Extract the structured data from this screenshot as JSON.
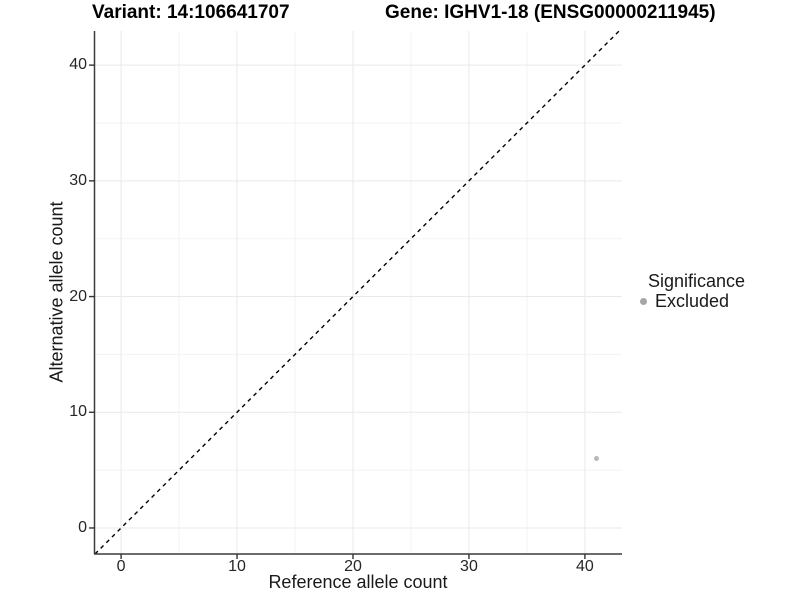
{
  "titles": {
    "variant": "Variant: 14:106641707",
    "gene": "Gene: IGHV1-18 (ENSG00000211945)"
  },
  "axes": {
    "x": {
      "label": "Reference allele count",
      "tick_labels": [
        "0",
        "10",
        "20",
        "30",
        "40"
      ]
    },
    "y": {
      "label": "Alternative allele count",
      "tick_labels": [
        "0",
        "10",
        "20",
        "30",
        "40"
      ]
    }
  },
  "legend": {
    "title": "Significance",
    "items": [
      {
        "label": "Excluded",
        "key_color": "#a6a6a6"
      }
    ]
  },
  "colors": {
    "background": "#ffffff",
    "grid_major": "#e9e9e9",
    "grid_minor": "#f3f3f3",
    "axis_line": "#3c3c3c",
    "tick_mark": "#333333",
    "identity_line": "#000000",
    "point": "#b9b9b9",
    "legend_key": "#a6a6a6"
  },
  "chart_data": {
    "type": "scatter",
    "title": "Variant: 14:106641707  |  Gene: IGHV1-18 (ENSG00000211945)",
    "xlabel": "Reference allele count",
    "ylabel": "Alternative allele count",
    "xlim": [
      -2.25,
      43.2
    ],
    "ylim": [
      -2.25,
      42.95
    ],
    "x_ticks": [
      0,
      10,
      20,
      30,
      40
    ],
    "y_ticks": [
      0,
      10,
      20,
      30,
      40
    ],
    "grid": {
      "major": true,
      "minor": true,
      "minor_spacing": 5
    },
    "identity_line": {
      "slope": 1,
      "intercept": 0,
      "style": "dashed"
    },
    "legend_position": "right",
    "series": [
      {
        "name": "Excluded",
        "color": "#b9b9b9",
        "point_radius": 2.5,
        "points": [
          {
            "x": 41,
            "y": 6
          }
        ]
      }
    ]
  }
}
